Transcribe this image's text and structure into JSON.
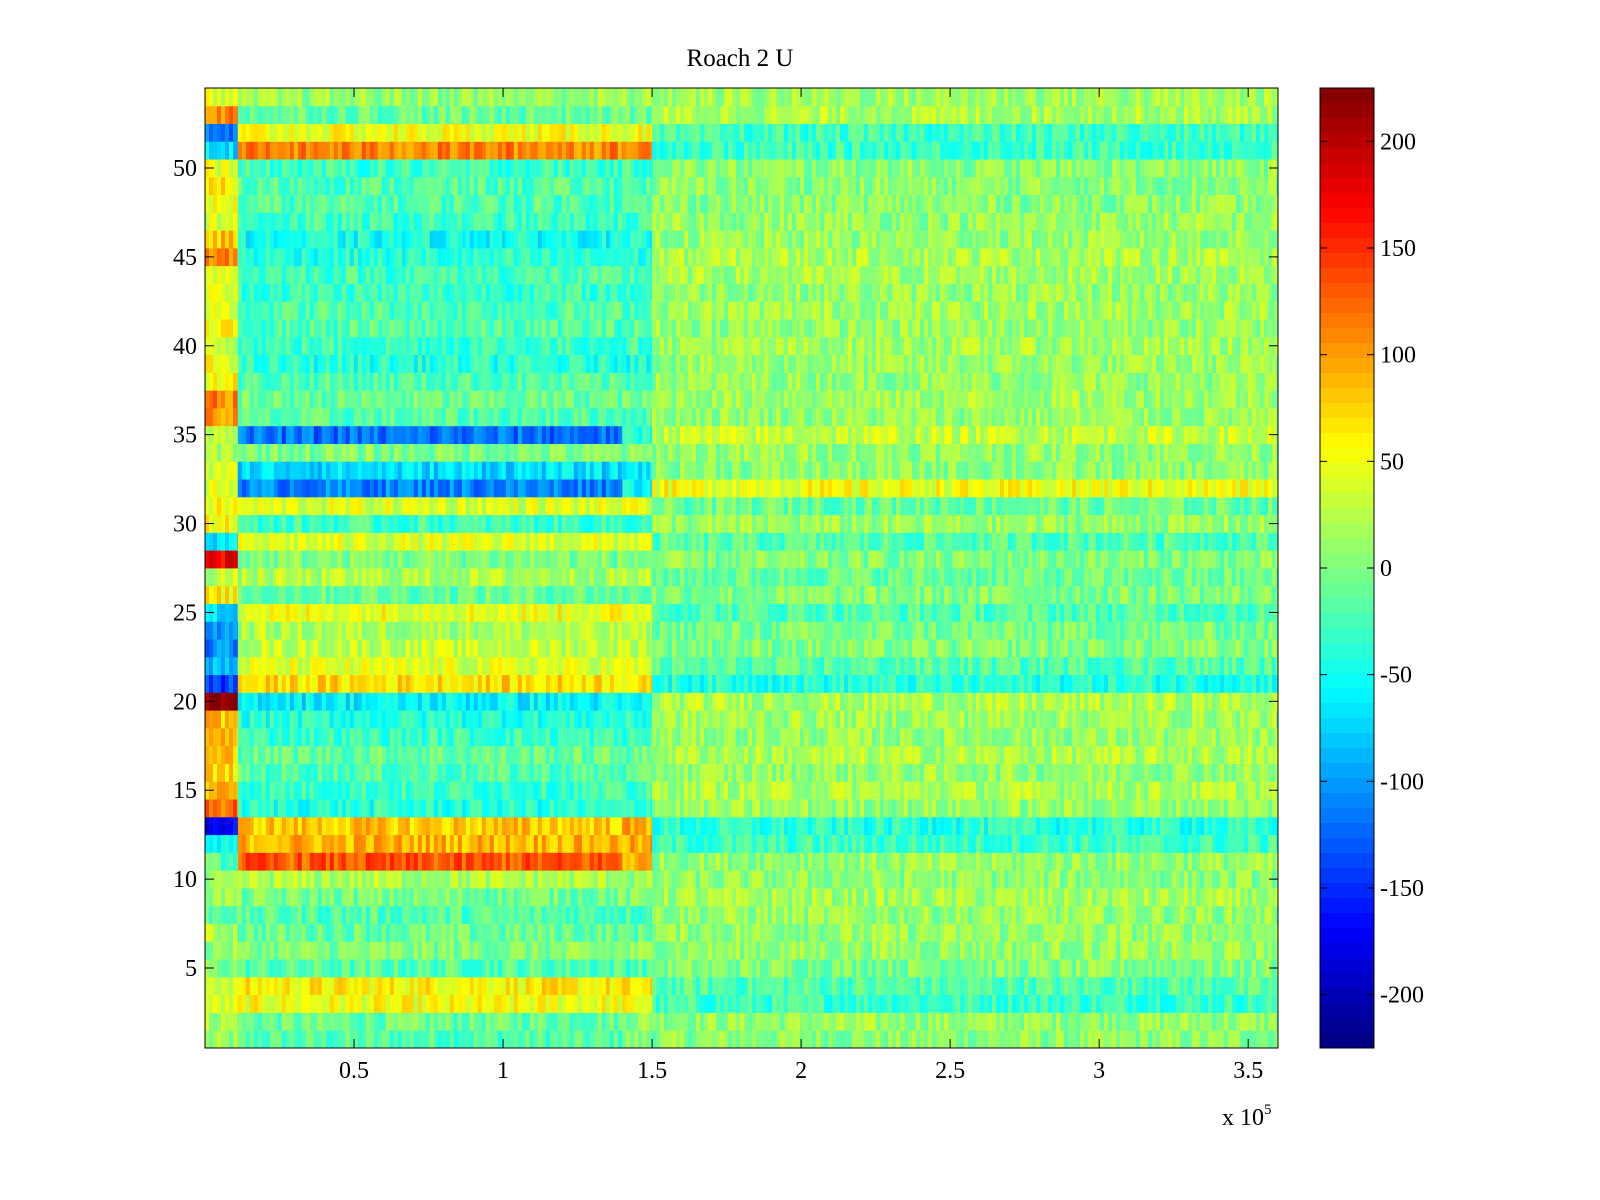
{
  "chart_data": {
    "type": "heatmap",
    "title": "Roach 2 U",
    "xlabel": "",
    "ylabel": "",
    "x_multiplier_label": {
      "base": "x 10",
      "exponent": "5"
    },
    "xlim": [
      0,
      3.6
    ],
    "ylim": [
      0.5,
      54.5
    ],
    "n_rows": 54,
    "x_ticks": [
      0.5,
      1,
      1.5,
      2,
      2.5,
      3,
      3.5
    ],
    "x_tick_labels": [
      "0.5",
      "1",
      "1.5",
      "2",
      "2.5",
      "3",
      "3.5"
    ],
    "y_ticks": [
      5,
      10,
      15,
      20,
      25,
      30,
      35,
      40,
      45,
      50
    ],
    "y_tick_labels": [
      "5",
      "10",
      "15",
      "20",
      "25",
      "30",
      "35",
      "40",
      "45",
      "50"
    ],
    "colorbar": {
      "colormap": "jet",
      "clim": [
        -225,
        225
      ],
      "ticks": [
        200,
        150,
        100,
        50,
        0,
        -50,
        -100,
        -150,
        -200
      ],
      "tick_labels": [
        "200",
        "150",
        "100",
        "50",
        "0",
        "-50",
        "-100",
        "-150",
        "-200"
      ]
    },
    "segments": [
      [
        0,
        0.11
      ],
      [
        0.11,
        1.4
      ],
      [
        1.4,
        1.5
      ],
      [
        1.5,
        3.6
      ]
    ],
    "row_values": [
      [
        5,
        -20,
        0,
        5
      ],
      [
        20,
        -10,
        10,
        10
      ],
      [
        35,
        50,
        50,
        -30
      ],
      [
        40,
        60,
        60,
        -20
      ],
      [
        0,
        -20,
        -20,
        0
      ],
      [
        10,
        0,
        5,
        10
      ],
      [
        20,
        -10,
        -10,
        10
      ],
      [
        -10,
        -20,
        -20,
        10
      ],
      [
        15,
        -5,
        -5,
        15
      ],
      [
        0,
        20,
        10,
        5
      ],
      [
        -20,
        130,
        90,
        10
      ],
      [
        -60,
        90,
        90,
        -30
      ],
      [
        -170,
        80,
        90,
        -40
      ],
      [
        120,
        -40,
        -30,
        10
      ],
      [
        90,
        -30,
        -30,
        20
      ],
      [
        70,
        -20,
        -20,
        10
      ],
      [
        80,
        -10,
        -10,
        20
      ],
      [
        90,
        -30,
        -30,
        10
      ],
      [
        85,
        -40,
        -40,
        15
      ],
      [
        210,
        -60,
        -60,
        20
      ],
      [
        -140,
        70,
        60,
        -40
      ],
      [
        -90,
        40,
        40,
        -20
      ],
      [
        -110,
        30,
        30,
        0
      ],
      [
        -100,
        20,
        20,
        -5
      ],
      [
        -70,
        50,
        50,
        -20
      ],
      [
        60,
        -10,
        -10,
        0
      ],
      [
        30,
        20,
        20,
        -10
      ],
      [
        180,
        0,
        0,
        0
      ],
      [
        -70,
        40,
        40,
        -20
      ],
      [
        60,
        -30,
        -30,
        10
      ],
      [
        50,
        40,
        40,
        -10
      ],
      [
        40,
        -110,
        -50,
        50
      ],
      [
        30,
        -70,
        -60,
        5
      ],
      [
        20,
        0,
        0,
        10
      ],
      [
        40,
        -120,
        -40,
        30
      ],
      [
        100,
        -20,
        -20,
        10
      ],
      [
        110,
        -10,
        -10,
        15
      ],
      [
        60,
        -20,
        -20,
        10
      ],
      [
        50,
        -40,
        -40,
        10
      ],
      [
        40,
        -30,
        -30,
        15
      ],
      [
        50,
        -20,
        -20,
        10
      ],
      [
        45,
        -20,
        -20,
        15
      ],
      [
        40,
        -30,
        -30,
        10
      ],
      [
        50,
        -25,
        -25,
        15
      ],
      [
        110,
        -40,
        -40,
        20
      ],
      [
        80,
        -50,
        -50,
        10
      ],
      [
        40,
        -30,
        -30,
        10
      ],
      [
        50,
        -20,
        -20,
        5
      ],
      [
        60,
        -20,
        -20,
        5
      ],
      [
        45,
        -30,
        -30,
        5
      ],
      [
        -70,
        110,
        110,
        -30
      ],
      [
        -120,
        50,
        50,
        -30
      ],
      [
        110,
        -10,
        -10,
        20
      ],
      [
        40,
        10,
        10,
        15
      ]
    ]
  }
}
